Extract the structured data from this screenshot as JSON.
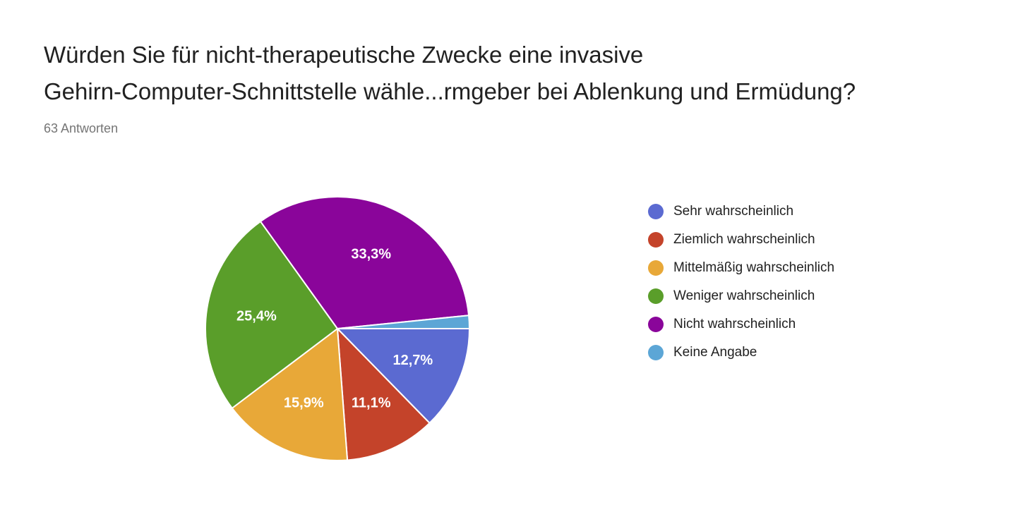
{
  "chart": {
    "title_line1": "Würden Sie für nicht-therapeutische Zwecke eine invasive",
    "title_line2": "Gehirn-Computer-Schnittstelle wähle...rmgeber bei Ablenkung und Ermüdung?",
    "response_count": "63 Antworten"
  },
  "chart_data": {
    "type": "pie",
    "categories": [
      "Sehr wahrscheinlich",
      "Ziemlich wahrscheinlich",
      "Mittelmäßig wahrscheinlich",
      "Weniger wahrscheinlich",
      "Nicht wahrscheinlich",
      "Keine Angabe"
    ],
    "values": [
      12.7,
      11.1,
      15.9,
      25.4,
      33.3,
      1.6
    ],
    "data_labels": [
      "12,7%",
      "11,1%",
      "15,9%",
      "25,4%",
      "33,3%",
      ""
    ],
    "colors": [
      "#5b6ad1",
      "#c4432a",
      "#e8a838",
      "#5a9e2a",
      "#8a059a",
      "#5ca6d6"
    ],
    "legend_position": "right"
  }
}
